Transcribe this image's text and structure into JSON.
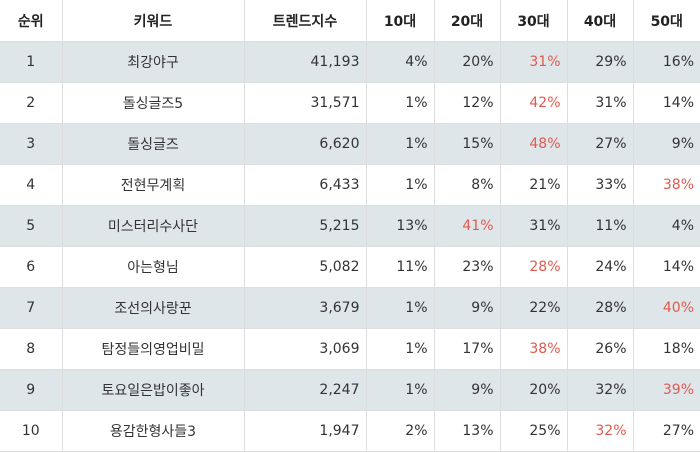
{
  "headers": [
    "순위",
    "키워드",
    "트렌드지수",
    "10대",
    "20대",
    "30대",
    "40대",
    "50대"
  ],
  "highlight_color": "#e05a4f",
  "shade_color": "#dee6ea",
  "rows": [
    {
      "rank": "1",
      "keyword": "최강야구",
      "trend": "41,193",
      "ages": [
        "4%",
        "20%",
        "31%",
        "29%",
        "16%"
      ],
      "max": 2
    },
    {
      "rank": "2",
      "keyword": "돌싱글즈5",
      "trend": "31,571",
      "ages": [
        "1%",
        "12%",
        "42%",
        "31%",
        "14%"
      ],
      "max": 2
    },
    {
      "rank": "3",
      "keyword": "돌싱글즈",
      "trend": "6,620",
      "ages": [
        "1%",
        "15%",
        "48%",
        "27%",
        "9%"
      ],
      "max": 2
    },
    {
      "rank": "4",
      "keyword": "전현무계획",
      "trend": "6,433",
      "ages": [
        "1%",
        "8%",
        "21%",
        "33%",
        "38%"
      ],
      "max": 4
    },
    {
      "rank": "5",
      "keyword": "미스터리수사단",
      "trend": "5,215",
      "ages": [
        "13%",
        "41%",
        "31%",
        "11%",
        "4%"
      ],
      "max": 1
    },
    {
      "rank": "6",
      "keyword": "아는형님",
      "trend": "5,082",
      "ages": [
        "11%",
        "23%",
        "28%",
        "24%",
        "14%"
      ],
      "max": 2
    },
    {
      "rank": "7",
      "keyword": "조선의사랑꾼",
      "trend": "3,679",
      "ages": [
        "1%",
        "9%",
        "22%",
        "28%",
        "40%"
      ],
      "max": 4
    },
    {
      "rank": "8",
      "keyword": "탐정들의영업비밀",
      "trend": "3,069",
      "ages": [
        "1%",
        "17%",
        "38%",
        "26%",
        "18%"
      ],
      "max": 2
    },
    {
      "rank": "9",
      "keyword": "토요일은밥이좋아",
      "trend": "2,247",
      "ages": [
        "1%",
        "9%",
        "20%",
        "32%",
        "39%"
      ],
      "max": 4
    },
    {
      "rank": "10",
      "keyword": "용감한형사들3",
      "trend": "1,947",
      "ages": [
        "2%",
        "13%",
        "25%",
        "32%",
        "27%"
      ],
      "max": 3
    }
  ]
}
